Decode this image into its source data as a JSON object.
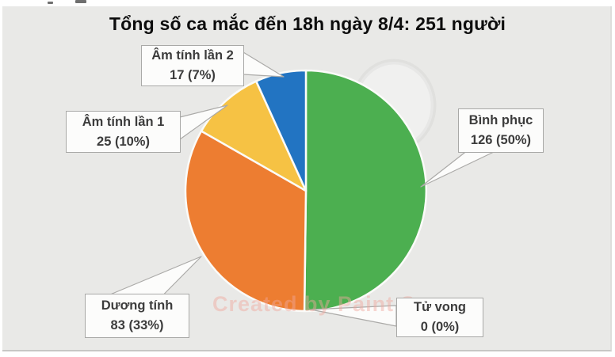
{
  "chart_data": {
    "type": "pie",
    "title": "Tổng số ca mắc đến 18h ngày 8/4: 251 người",
    "total": 251,
    "direction": "clockwise",
    "start_angle_deg": 0,
    "legend_position": "callout-labels",
    "background_color": "#e9e9e7",
    "watermark": "Created by Paint S",
    "slices": [
      {
        "label": "Bình phục",
        "value": 126,
        "percent": "50%",
        "value_text": "126 (50%)",
        "color": "#4caf50"
      },
      {
        "label": "Tử vong",
        "value": 0,
        "percent": "0%",
        "value_text": "0 (0%)",
        "color": "#9e9e9e"
      },
      {
        "label": "Dương tính",
        "value": 83,
        "percent": "33%",
        "value_text": "83 (33%)",
        "color": "#ed7d31"
      },
      {
        "label": "Âm tính lần 1",
        "value": 25,
        "percent": "10%",
        "value_text": "25 (10%)",
        "color": "#f6c244"
      },
      {
        "label": "Âm tính lần 2",
        "value": 17,
        "percent": "7%",
        "value_text": "17 (7%)",
        "color": "#2274c2"
      }
    ]
  }
}
